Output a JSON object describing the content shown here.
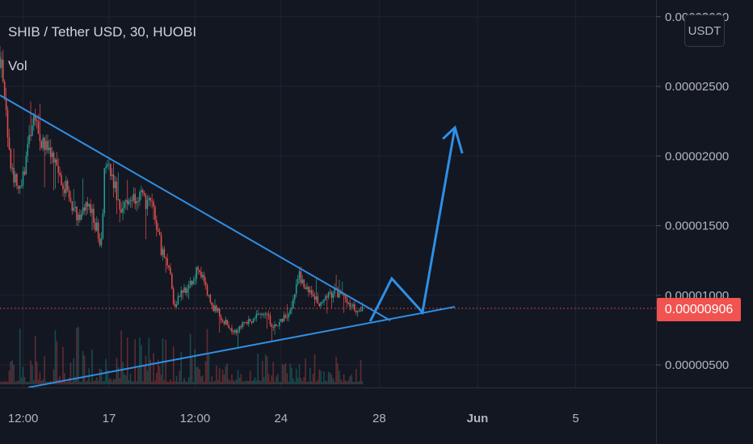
{
  "header": {
    "symbol_title": "SHIB / Tether USD, 30, HUOBI",
    "indicator": "Vol"
  },
  "currency_button": "USDT",
  "last_price_label": "0.00000906",
  "colors": {
    "background": "#131722",
    "up": "#26a69a",
    "down": "#ef5350",
    "drawing": "#2f8fe6",
    "price_line": "#f05350"
  },
  "chart_data": {
    "type": "candlestick",
    "title": "SHIB / Tether USD, 30, HUOBI",
    "xlabel": "",
    "ylabel": "USDT",
    "ylim": [
      2.8e-06,
      3.12e-05
    ],
    "x_unit": "day of May",
    "y_ticks": [
      "0.00003000",
      "0.00002500",
      "0.00002000",
      "0.00001500",
      "0.00001000",
      "0.00000500"
    ],
    "y_tick_values": [
      3e-05,
      2.5e-05,
      2e-05,
      1.5e-05,
      1e-05,
      5e-06
    ],
    "x_ticks": [
      {
        "label": "12:00",
        "day": 13.5
      },
      {
        "label": "17",
        "day": 17
      },
      {
        "label": "12:00",
        "day": 20.5
      },
      {
        "label": "24",
        "day": 24
      },
      {
        "label": "28",
        "day": 28
      },
      {
        "label": "Jun",
        "day": 32
      },
      {
        "label": "5",
        "day": 36
      }
    ],
    "grid": true,
    "last_price": 9.06e-06,
    "price_path": [
      [
        12.56,
        2.71e-05
      ],
      [
        12.72,
        2.54e-05
      ],
      [
        12.89,
        2.02e-05
      ],
      [
        13.22,
        1.79e-05
      ],
      [
        13.38,
        1.73e-05
      ],
      [
        13.88,
        2.25e-05
      ],
      [
        14.53,
        2.02e-05
      ],
      [
        15.19,
        1.79e-05
      ],
      [
        15.68,
        1.58e-05
      ],
      [
        16.18,
        1.64e-05
      ],
      [
        16.67,
        1.38e-05
      ],
      [
        16.84,
        1.96e-05
      ],
      [
        17.49,
        1.64e-05
      ],
      [
        18.15,
        1.73e-05
      ],
      [
        18.81,
        1.61e-05
      ],
      [
        19.14,
        1.32e-05
      ],
      [
        19.47,
        1.21e-05
      ],
      [
        19.63,
        9.2e-06
      ],
      [
        19.96,
        1.03e-05
      ],
      [
        20.45,
        1.09e-05
      ],
      [
        20.62,
        1.21e-05
      ],
      [
        21.11,
        9.5e-06
      ],
      [
        21.61,
        8.3e-06
      ],
      [
        22.1,
        7.4e-06
      ],
      [
        22.43,
        8e-06
      ],
      [
        22.92,
        8.3e-06
      ],
      [
        23.25,
        8.9e-06
      ],
      [
        23.74,
        7.7e-06
      ],
      [
        24.4,
        8.9e-06
      ],
      [
        24.73,
        1.15e-05
      ],
      [
        25.06,
        1.03e-05
      ],
      [
        25.55,
        9.5e-06
      ],
      [
        26.21,
        1.03e-05
      ],
      [
        26.7,
        9.5e-06
      ],
      [
        27.2,
        8.7e-06
      ],
      [
        27.36,
        9.06e-06
      ]
    ],
    "drawings": {
      "upper_trendline": [
        [
          12.56,
          2.436e-05
        ],
        [
          28.45,
          8.19e-06
        ]
      ],
      "lower_trendline": [
        [
          13.71,
          3.38e-06
        ],
        [
          31.08,
          9.17e-06
        ]
      ],
      "projection_path": [
        [
          27.63,
          8.13e-06
        ],
        [
          28.51,
          1.12e-05
        ],
        [
          29.76,
          8.77e-06
        ],
        [
          31.08,
          2.204e-05
        ]
      ],
      "arrow_head": [
        [
          30.59,
          2.123e-05
        ],
        [
          31.08,
          2.204e-05
        ],
        [
          31.38,
          2.019e-05
        ]
      ]
    }
  }
}
